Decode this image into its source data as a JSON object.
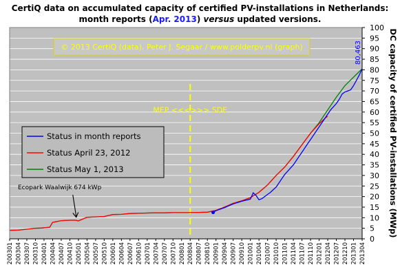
{
  "chart_data": {
    "type": "line",
    "title_line1": "CertiQ data on accumulated capacity of certified PV-installations in Netherlands:",
    "title_line2_prefix": "month reports (",
    "title_line2_highlight": "Apr. 2013",
    "title_line2_middle": ") ",
    "title_line2_italic": "versus",
    "title_line2_suffix": " updated versions.",
    "copyright": "© 2013 CertiQ (data). Peter J. Segaar / www.polderpv.nl (graph)",
    "ylabel": "DC capacity of certified PV-installations (MWp)",
    "xlabel": "",
    "ylim": [
      0,
      100
    ],
    "y_ticks": [
      "0",
      "5",
      "10",
      "15",
      "20",
      "25",
      "30",
      "35",
      "40",
      "45",
      "50",
      "55",
      "60",
      "65",
      "70",
      "75",
      "80",
      "85",
      "90",
      "95",
      "100"
    ],
    "x_ticks": [
      "200301",
      "200304",
      "200307",
      "200310",
      "200401",
      "200404",
      "200407",
      "200410",
      "200501",
      "200504",
      "200507",
      "200510",
      "200601",
      "200604",
      "200607",
      "200610",
      "200701",
      "200704",
      "200707",
      "200710",
      "200801",
      "200804",
      "200807",
      "200810",
      "200901",
      "200904",
      "200907",
      "200910",
      "201001",
      "201004",
      "201007",
      "201010",
      "201101",
      "201104",
      "201107",
      "201110",
      "201201",
      "201204",
      "201207",
      "201210",
      "201301",
      "201304"
    ],
    "legend_position": "left-middle",
    "annotations": {
      "mep_sde": "MEP <<<>>> SDE",
      "ecopark": "Ecopark Waalwijk 674 kWp",
      "last_value": "80,463"
    },
    "mep_sde_month": "200804",
    "series": [
      {
        "name": "Status in month reports",
        "color": "#0000ff",
        "x": [
          "200812",
          "200901",
          "200904",
          "200907",
          "200910",
          "201001",
          "201002",
          "201003",
          "201004",
          "201005",
          "201006",
          "201007",
          "201008",
          "201009",
          "201010",
          "201011",
          "201012",
          "201101",
          "201102",
          "201103",
          "201104",
          "201105",
          "201106",
          "201107",
          "201108",
          "201109",
          "201110",
          "201111",
          "201112",
          "201201",
          "201202",
          "201203",
          "201204",
          "201205",
          "201206",
          "201207",
          "201208",
          "201209",
          "201210",
          "201211",
          "201212",
          "201301",
          "201302",
          "201303",
          "201304"
        ],
        "values": [
          12.5,
          13.3,
          14.8,
          16.5,
          17.8,
          18.8,
          21.8,
          20.5,
          18.5,
          19.0,
          20.0,
          21.0,
          22.0,
          23.3,
          24.5,
          26.5,
          28.5,
          30.5,
          32.0,
          33.5,
          35.0,
          37.0,
          39.0,
          41.0,
          43.0,
          45.0,
          47.0,
          49.0,
          51.0,
          53.0,
          55.0,
          57.0,
          59.0,
          61.0,
          62.5,
          64.0,
          66.0,
          68.5,
          69.5,
          70.0,
          70.5,
          72.5,
          75.0,
          77.5,
          80.463
        ]
      },
      {
        "name": "Status April 23, 2012",
        "color": "#ff0000",
        "x": [
          "200301",
          "200304",
          "200310",
          "200312",
          "200403",
          "200404",
          "200407",
          "200410",
          "200412",
          "200501",
          "200504",
          "200507",
          "200510",
          "200601",
          "200604",
          "200607",
          "200610",
          "200701",
          "200704",
          "200707",
          "200710",
          "200801",
          "200804",
          "200807",
          "200810",
          "200901",
          "200904",
          "200907",
          "200910",
          "201001",
          "201004",
          "201007",
          "201010",
          "201101",
          "201104",
          "201107",
          "201110",
          "201201",
          "201203",
          "201204"
        ],
        "values": [
          4.0,
          4.1,
          5.0,
          5.1,
          5.5,
          7.8,
          8.6,
          8.8,
          8.8,
          8.5,
          10.2,
          10.4,
          10.6,
          11.5,
          11.6,
          12.0,
          12.1,
          12.2,
          12.3,
          12.3,
          12.4,
          12.4,
          12.4,
          12.5,
          12.6,
          13.5,
          15.0,
          16.8,
          18.0,
          19.5,
          22.0,
          25.5,
          30.0,
          34.0,
          39.0,
          44.5,
          50.0,
          54.5,
          57.0,
          58.0
        ]
      },
      {
        "name": "Status May 1, 2013",
        "color": "#008000",
        "x": [
          "200301",
          "200304",
          "200310",
          "200312",
          "200403",
          "200404",
          "200407",
          "200410",
          "200412",
          "200501",
          "200504",
          "200507",
          "200510",
          "200601",
          "200604",
          "200607",
          "200610",
          "200701",
          "200704",
          "200707",
          "200710",
          "200801",
          "200804",
          "200807",
          "200810",
          "200901",
          "200904",
          "200907",
          "200910",
          "201001",
          "201004",
          "201007",
          "201010",
          "201101",
          "201104",
          "201107",
          "201110",
          "201201",
          "201204",
          "201207",
          "201210",
          "201301",
          "201304"
        ],
        "values": [
          4.0,
          4.1,
          5.0,
          5.1,
          5.5,
          7.8,
          8.6,
          8.8,
          8.8,
          8.5,
          10.2,
          10.4,
          10.6,
          11.5,
          11.6,
          12.0,
          12.1,
          12.2,
          12.3,
          12.3,
          12.4,
          12.4,
          12.4,
          12.5,
          12.6,
          13.5,
          15.0,
          16.8,
          18.0,
          19.5,
          22.0,
          25.5,
          30.0,
          34.0,
          39.0,
          44.5,
          50.0,
          55.0,
          61.0,
          67.0,
          72.5,
          76.5,
          80.463
        ]
      }
    ],
    "markers": [
      {
        "x": "200812",
        "y": 12.5,
        "color": "#0000ff"
      }
    ]
  }
}
